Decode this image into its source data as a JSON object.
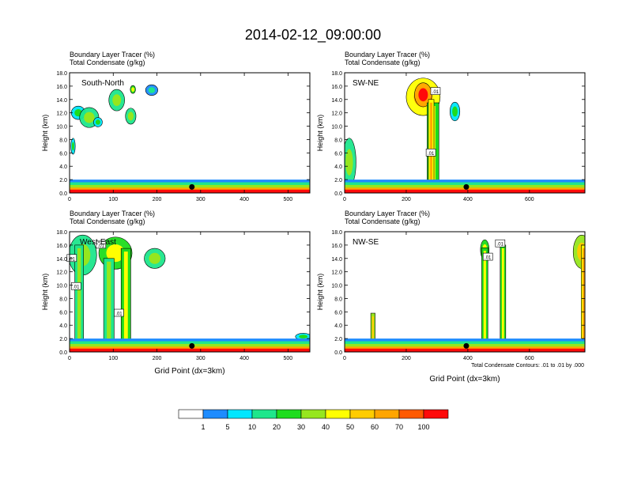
{
  "title": "2014-02-12_09:00:00",
  "field_label_1": "Boundary Layer Tracer   (%)",
  "field_label_2": "Total Condensate   (g/kg)",
  "ylabel": "Height (km)",
  "xlabel": "Grid Point (dx=3km)",
  "contour_note": "Total Condensate Contours: .01 to .01 by .000",
  "colors": {
    "c0": "#ffffff",
    "c1": "#1e8cff",
    "c5": "#00e6ff",
    "c10": "#1ee68c",
    "c20": "#1edc1e",
    "c30": "#96e61e",
    "c40": "#ffff00",
    "c50": "#ffcc00",
    "c60": "#ffa500",
    "c70": "#ff5a00",
    "c100": "#ff0a0a"
  },
  "chart_data": {
    "type": "heatmap",
    "colorbar": {
      "labels": [
        "1",
        "5",
        "10",
        "20",
        "30",
        "40",
        "50",
        "60",
        "70",
        "100"
      ],
      "colors": [
        "#ffffff",
        "#1e8cff",
        "#00e6ff",
        "#1ee68c",
        "#1edc1e",
        "#96e61e",
        "#ffff00",
        "#ffcc00",
        "#ffa500",
        "#ff5a00",
        "#ff0a0a"
      ]
    },
    "panels": [
      {
        "name": "South-North",
        "xlim": [
          0,
          550
        ],
        "ylim": [
          0,
          18
        ],
        "xticks": [
          0,
          100,
          200,
          300,
          400,
          500
        ],
        "xtick_labels": [
          "0",
          "100",
          "200",
          "300",
          "400",
          "500"
        ],
        "yticks": [
          0,
          2,
          4,
          6,
          8,
          10,
          12,
          14,
          16,
          18
        ],
        "ytick_labels": [
          "0.0",
          "2.0",
          "4.0",
          "6.0",
          "8.0",
          "10.0",
          "12.0",
          "14.0",
          "16.0",
          "18.0"
        ],
        "marker": [
          280,
          0.9
        ],
        "clouds": [
          {
            "cx": 20,
            "cy": 12.0,
            "rx": 16,
            "ry": 1.0,
            "level": 1
          },
          {
            "cx": 45,
            "cy": 11.3,
            "rx": 22,
            "ry": 1.5,
            "level": 2
          },
          {
            "cx": 65,
            "cy": 10.6,
            "rx": 10,
            "ry": 0.7,
            "level": 1
          },
          {
            "cx": 108,
            "cy": 13.9,
            "rx": 18,
            "ry": 1.6,
            "level": 2
          },
          {
            "cx": 140,
            "cy": 11.5,
            "rx": 12,
            "ry": 1.2,
            "level": 2
          },
          {
            "cx": 145,
            "cy": 15.5,
            "rx": 6,
            "ry": 0.6,
            "level": 3
          },
          {
            "cx": 188,
            "cy": 15.4,
            "rx": 14,
            "ry": 0.8,
            "level": 0
          },
          {
            "cx": 8,
            "cy": 7.0,
            "rx": 5,
            "ry": 1.2,
            "level": 1
          }
        ],
        "columns": [],
        "contour_labels": []
      },
      {
        "name": "SW-NE",
        "xlim": [
          0,
          780
        ],
        "ylim": [
          0,
          18
        ],
        "xticks": [
          0,
          200,
          400,
          600
        ],
        "xtick_labels": [
          "0",
          "200",
          "400",
          "600"
        ],
        "yticks": [
          0,
          2,
          4,
          6,
          8,
          10,
          12,
          14,
          16,
          18
        ],
        "ytick_labels": [
          "0.0",
          "2.0",
          "4.0",
          "6.0",
          "8.0",
          "10.0",
          "12.0",
          "14.0",
          "16.0",
          "18.0"
        ],
        "marker": [
          395,
          0.9
        ],
        "clouds": [
          {
            "cx": 255,
            "cy": 14.4,
            "rx": 55,
            "ry": 2.8,
            "level": 5
          },
          {
            "cx": 255,
            "cy": 14.7,
            "rx": 28,
            "ry": 1.8,
            "level": 7
          },
          {
            "cx": 15,
            "cy": 4.6,
            "rx": 22,
            "ry": 3.6,
            "level": 2
          },
          {
            "cx": 358,
            "cy": 12.2,
            "rx": 16,
            "ry": 1.4,
            "level": 1
          }
        ],
        "columns": [
          {
            "x": 268,
            "w": 38,
            "top": 13.5,
            "level": 3
          },
          {
            "x": 272,
            "w": 18,
            "top": 14.0,
            "level": 5
          }
        ],
        "contour_labels": [
          {
            "text": ".01",
            "x": 295,
            "y": 15.2
          },
          {
            "text": ".01",
            "x": 280,
            "y": 6.0
          }
        ]
      },
      {
        "name": "West-East",
        "xlim": [
          0,
          550
        ],
        "ylim": [
          0,
          18
        ],
        "xticks": [
          0,
          100,
          200,
          300,
          400,
          500
        ],
        "xtick_labels": [
          "0",
          "100",
          "200",
          "300",
          "400",
          "500"
        ],
        "yticks": [
          0,
          2,
          4,
          6,
          8,
          10,
          12,
          14,
          16,
          18
        ],
        "ytick_labels": [
          "0.0",
          "2.0",
          "4.0",
          "6.0",
          "8.0",
          "10.0",
          "12.0",
          "14.0",
          "16.0",
          "18.0"
        ],
        "marker": [
          280,
          0.9
        ],
        "clouds": [
          {
            "cx": 30,
            "cy": 14.5,
            "rx": 32,
            "ry": 3.0,
            "level": 2
          },
          {
            "cx": 105,
            "cy": 14.8,
            "rx": 38,
            "ry": 2.4,
            "level": 3
          },
          {
            "cx": 195,
            "cy": 14.0,
            "rx": 24,
            "ry": 1.5,
            "level": 2
          },
          {
            "cx": 535,
            "cy": 2.3,
            "rx": 18,
            "ry": 0.5,
            "level": 1
          }
        ],
        "columns": [
          {
            "x": 12,
            "w": 20,
            "top": 16.0,
            "level": 2
          },
          {
            "x": 78,
            "w": 24,
            "top": 14.0,
            "level": 2
          },
          {
            "x": 118,
            "w": 22,
            "top": 15.5,
            "level": 3
          }
        ],
        "contour_labels": [
          {
            "text": ".01",
            "x": 5,
            "y": 14.0
          },
          {
            "text": ".01",
            "x": 15,
            "y": 9.8
          },
          {
            "text": ".01",
            "x": 72,
            "y": 16.0
          },
          {
            "text": ".01",
            "x": 113,
            "y": 5.8
          }
        ]
      },
      {
        "name": "NW-SE",
        "xlim": [
          0,
          780
        ],
        "ylim": [
          0,
          18
        ],
        "xticks": [
          0,
          200,
          400,
          600
        ],
        "xtick_labels": [
          "0",
          "200",
          "400",
          "600"
        ],
        "yticks": [
          0,
          2,
          4,
          6,
          8,
          10,
          12,
          14,
          16,
          18
        ],
        "ytick_labels": [
          "0.0",
          "2.0",
          "4.0",
          "6.0",
          "8.0",
          "10.0",
          "12.0",
          "14.0",
          "16.0",
          "18.0"
        ],
        "marker": [
          395,
          0.9
        ],
        "clouds": [
          {
            "cx": 455,
            "cy": 15.3,
            "rx": 14,
            "ry": 1.5,
            "level": 3
          },
          {
            "cx": 770,
            "cy": 15.0,
            "rx": 28,
            "ry": 2.5,
            "level": 4
          }
        ],
        "columns": [
          {
            "x": 85,
            "w": 14,
            "top": 5.8,
            "level": 4
          },
          {
            "x": 445,
            "w": 20,
            "top": 15.6,
            "level": 3
          },
          {
            "x": 505,
            "w": 18,
            "top": 16.0,
            "level": 3
          },
          {
            "x": 768,
            "w": 16,
            "top": 16.0,
            "level": 5
          }
        ],
        "contour_labels": [
          {
            "text": ".01",
            "x": 505,
            "y": 16.2
          },
          {
            "text": ".01",
            "x": 465,
            "y": 14.2
          }
        ]
      }
    ]
  }
}
